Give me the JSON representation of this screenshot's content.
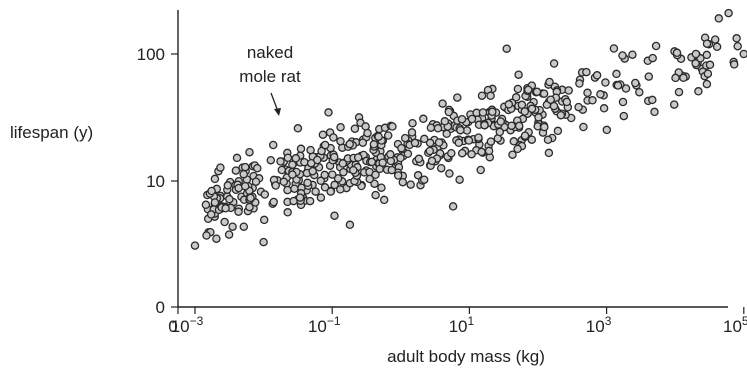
{
  "chart_data": {
    "type": "scatter",
    "xlabel": "adult body mass (kg)",
    "ylabel": "lifespan (y)",
    "x_scale": "log",
    "y_scale": "log",
    "x_ticks": [
      {
        "value": 0,
        "base": "0",
        "exp": ""
      },
      {
        "value": 0.001,
        "base": "10",
        "exp": "−3"
      },
      {
        "value": 0.1,
        "base": "10",
        "exp": "−1"
      },
      {
        "value": 10,
        "base": "10",
        "exp": "1"
      },
      {
        "value": 1000,
        "base": "10",
        "exp": "3"
      },
      {
        "value": 100000,
        "base": "10",
        "exp": "5"
      }
    ],
    "y_ticks": [
      {
        "value": 0,
        "label": "0"
      },
      {
        "value": 10,
        "label": "10"
      },
      {
        "value": 100,
        "label": "100"
      }
    ],
    "annotations": [
      {
        "text": [
          "naked",
          "mole rat"
        ],
        "x": 0.0316,
        "y": 26
      }
    ],
    "grid": false,
    "point_style": {
      "fill": "#c9c9c9",
      "stroke": "#2a2a2a"
    }
  }
}
